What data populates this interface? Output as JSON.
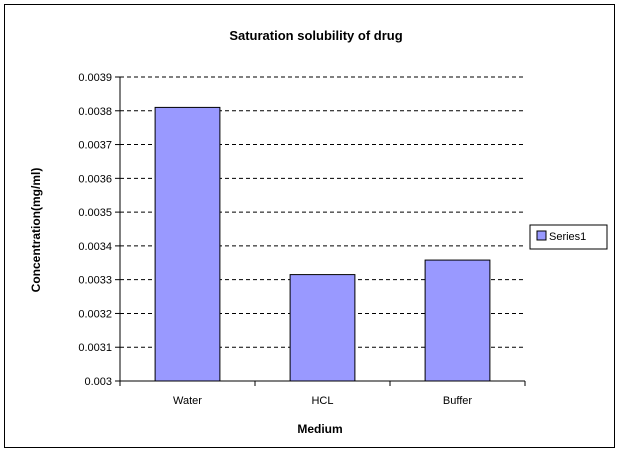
{
  "chart_data": {
    "type": "bar",
    "title": "Saturation solubility of drug",
    "xlabel": "Medium",
    "ylabel": "Concentration(mg/ml)",
    "categories": [
      "Water",
      "HCL",
      "Buffer"
    ],
    "series": [
      {
        "name": "Series1",
        "values": [
          0.00381,
          0.003315,
          0.003358
        ]
      }
    ],
    "ylim": [
      0.003,
      0.0039
    ],
    "yticks": [
      "0.003",
      "0.0031",
      "0.0032",
      "0.0033",
      "0.0034",
      "0.0035",
      "0.0036",
      "0.0037",
      "0.0038",
      "0.0039"
    ],
    "grid": "horizontal dashed",
    "legend_position": "right",
    "colors": {
      "bar": "#9999ff",
      "bar_border": "#000000",
      "grid": "#000000"
    }
  }
}
